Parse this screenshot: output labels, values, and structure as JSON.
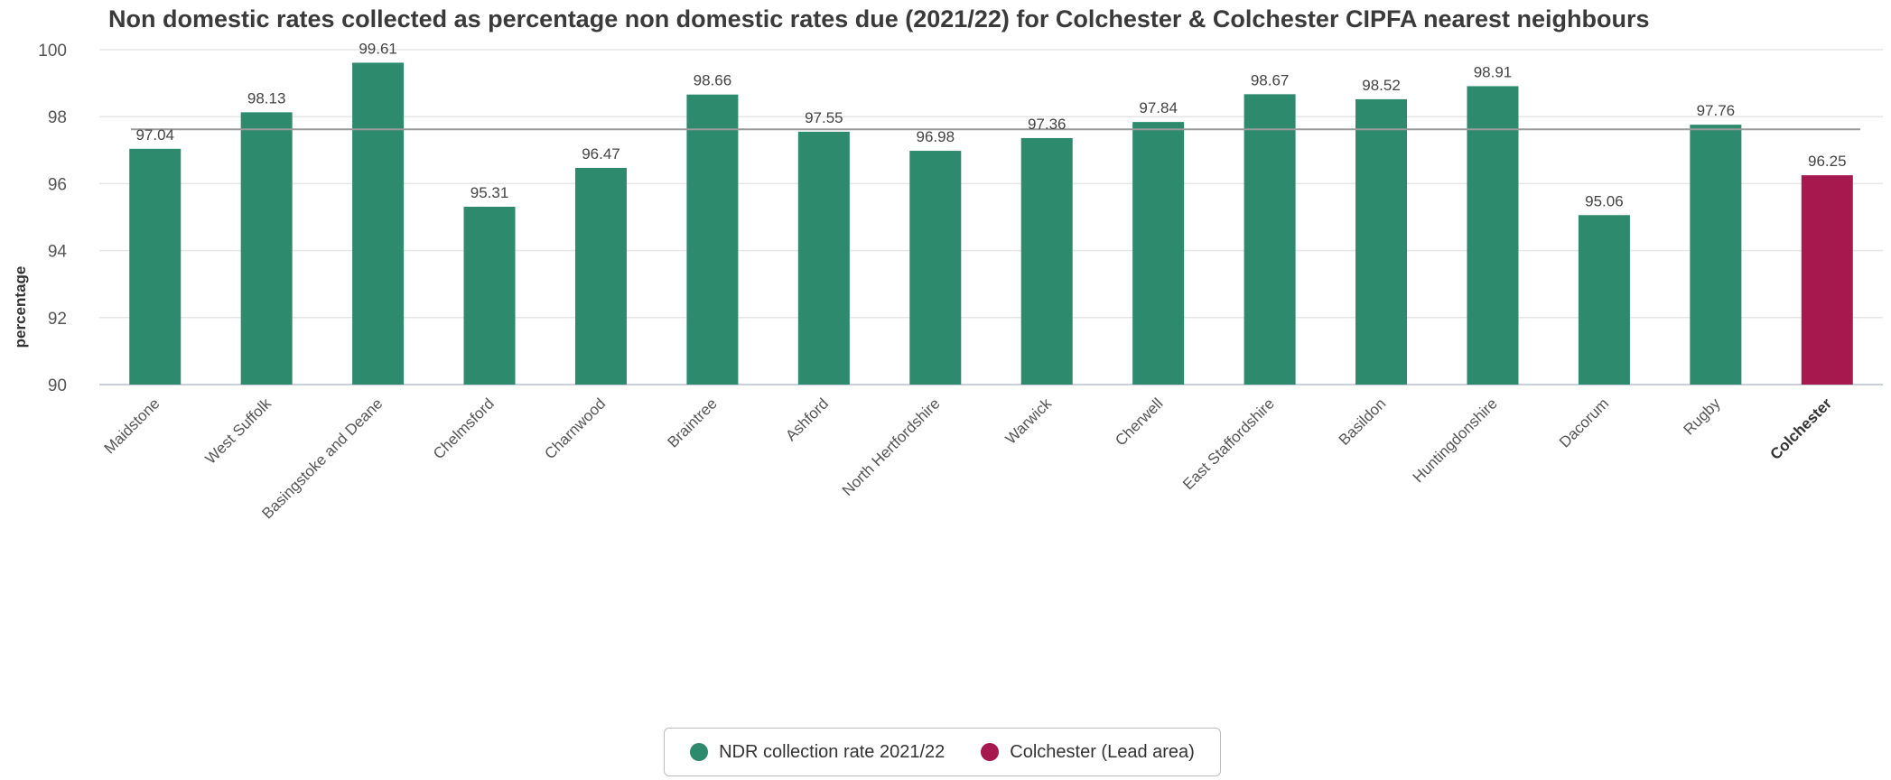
{
  "chart_data": {
    "type": "bar",
    "title": "Non domestic rates collected as percentage non domestic rates due (2021/22) for Colchester & Colchester CIPFA nearest neighbours",
    "xlabel": "",
    "ylabel": "percentage",
    "ylim": [
      90,
      100
    ],
    "yticks": [
      90,
      92,
      94,
      96,
      98,
      100
    ],
    "grid": true,
    "reference_line": 97.62,
    "categories": [
      "Maidstone",
      "West Suffolk",
      "Basingstoke and Deane",
      "Chelmsford",
      "Charnwood",
      "Braintree",
      "Ashford",
      "North Hertfordshire",
      "Warwick",
      "Cherwell",
      "East Staffordshire",
      "Basildon",
      "Huntingdonshire",
      "Dacorum",
      "Rugby",
      "Colchester"
    ],
    "values": [
      97.04,
      98.13,
      99.61,
      95.31,
      96.47,
      98.66,
      97.55,
      96.98,
      97.36,
      97.84,
      98.67,
      98.52,
      98.91,
      95.06,
      97.76,
      96.25
    ],
    "highlight_index": 15,
    "colors": {
      "primary": "#2e8a6d",
      "lead": "#a6194f"
    },
    "legend": {
      "placement": "bottom-center",
      "items": [
        {
          "label": "NDR collection rate 2021/22",
          "color": "#2e8a6d"
        },
        {
          "label": "Colchester (Lead area)",
          "color": "#a6194f"
        }
      ]
    }
  }
}
